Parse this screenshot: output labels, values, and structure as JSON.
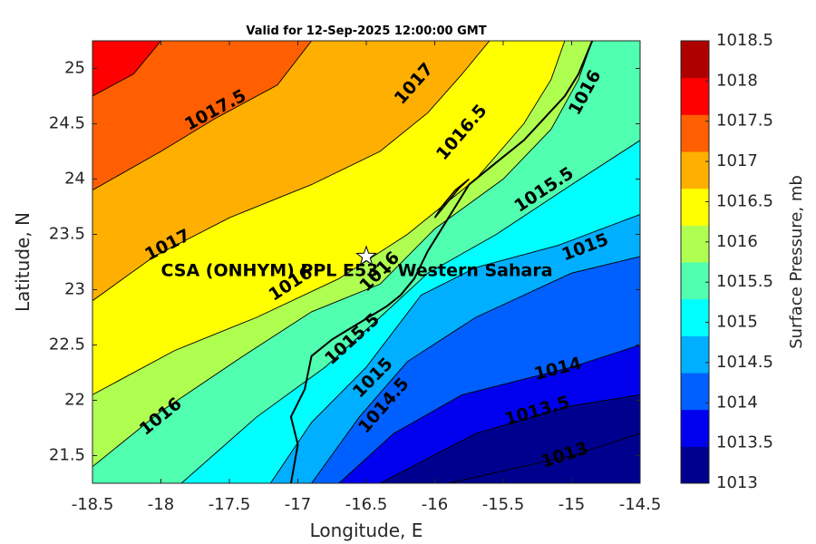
{
  "chart_data": {
    "type": "contour",
    "title": "Valid for 12-Sep-2025 12:00:00 GMT",
    "xlabel": "Longitude, E",
    "ylabel": "Latitude, N",
    "colorbar_label": "Surface Pressure, mb",
    "xlim": [
      -18.5,
      -14.5
    ],
    "ylim": [
      21.25,
      25.25
    ],
    "xticks": [
      "-18.5",
      "-18",
      "-17.5",
      "-17",
      "-16.5",
      "-16",
      "-15.5",
      "-15",
      "-14.5"
    ],
    "yticks": [
      "21.5",
      "22",
      "22.5",
      "23",
      "23.5",
      "24",
      "24.5",
      "25"
    ],
    "colorbar_levels": [
      1013,
      1013.5,
      1014,
      1014.5,
      1015,
      1015.5,
      1016,
      1016.5,
      1017,
      1017.5,
      1018,
      1018.5
    ],
    "colorbar_ticks": [
      "1013",
      "1013.5",
      "1014",
      "1014.5",
      "1015",
      "1015.5",
      "1016",
      "1016.5",
      "1017",
      "1017.5",
      "1018",
      "1018.5"
    ],
    "band_colors": [
      "#00008f",
      "#0000ef",
      "#005fff",
      "#00afff",
      "#00ffff",
      "#50ffaf",
      "#afff50",
      "#ffff00",
      "#ffaf00",
      "#ff5f00",
      "#ff0000",
      "#af0000"
    ],
    "contour_lines": [
      {
        "level": 1013,
        "points": [
          [
            -15.9,
            21.25
          ],
          [
            -15.0,
            21.5
          ],
          [
            -14.5,
            21.7
          ]
        ]
      },
      {
        "level": 1013.5,
        "points": [
          [
            -16.4,
            21.25
          ],
          [
            -15.7,
            21.7
          ],
          [
            -15.0,
            21.95
          ],
          [
            -14.5,
            22.05
          ]
        ]
      },
      {
        "level": 1014,
        "points": [
          [
            -16.7,
            21.25
          ],
          [
            -16.3,
            21.7
          ],
          [
            -15.8,
            22.05
          ],
          [
            -15.0,
            22.3
          ],
          [
            -14.5,
            22.5
          ]
        ]
      },
      {
        "level": 1014.5,
        "points": [
          [
            -16.9,
            21.25
          ],
          [
            -16.55,
            21.85
          ],
          [
            -16.2,
            22.35
          ],
          [
            -15.7,
            22.75
          ],
          [
            -15.0,
            23.15
          ],
          [
            -14.5,
            23.3
          ]
        ]
      },
      {
        "level": 1015,
        "points": [
          [
            -17.2,
            21.25
          ],
          [
            -16.9,
            21.8
          ],
          [
            -16.5,
            22.3
          ],
          [
            -16.1,
            22.95
          ],
          [
            -15.7,
            23.2
          ],
          [
            -15.1,
            23.4
          ],
          [
            -14.5,
            23.68
          ]
        ]
      },
      {
        "level": 1015.5,
        "points": [
          [
            -17.85,
            21.25
          ],
          [
            -17.3,
            21.85
          ],
          [
            -16.8,
            22.3
          ],
          [
            -16.4,
            22.75
          ],
          [
            -16.05,
            23.15
          ],
          [
            -15.55,
            23.5
          ],
          [
            -15.0,
            23.95
          ],
          [
            -14.5,
            24.35
          ]
        ]
      },
      {
        "level": 1016,
        "points": [
          [
            -18.5,
            21.4
          ],
          [
            -18.0,
            21.9
          ],
          [
            -17.4,
            22.4
          ],
          [
            -16.9,
            22.8
          ],
          [
            -16.4,
            23.05
          ],
          [
            -16.0,
            23.55
          ],
          [
            -15.5,
            24.0
          ],
          [
            -15.15,
            24.45
          ],
          [
            -14.95,
            24.9
          ],
          [
            -14.85,
            25.25
          ]
        ]
      },
      {
        "level": 1016.5,
        "points": [
          [
            -18.5,
            22.05
          ],
          [
            -17.9,
            22.45
          ],
          [
            -17.3,
            22.75
          ],
          [
            -16.7,
            23.1
          ],
          [
            -16.2,
            23.5
          ],
          [
            -15.7,
            24.0
          ],
          [
            -15.35,
            24.5
          ],
          [
            -15.15,
            24.9
          ],
          [
            -15.05,
            25.25
          ]
        ]
      },
      {
        "level": 1017,
        "points": [
          [
            -18.5,
            22.9
          ],
          [
            -18.05,
            23.3
          ],
          [
            -17.5,
            23.65
          ],
          [
            -16.9,
            23.95
          ],
          [
            -16.4,
            24.25
          ],
          [
            -16.05,
            24.6
          ],
          [
            -15.8,
            24.95
          ],
          [
            -15.6,
            25.25
          ]
        ]
      },
      {
        "level": 1017.5,
        "points": [
          [
            -18.5,
            23.9
          ],
          [
            -18.0,
            24.25
          ],
          [
            -17.6,
            24.55
          ],
          [
            -17.15,
            24.85
          ],
          [
            -16.9,
            25.25
          ]
        ]
      },
      {
        "level": 1018,
        "points": [
          [
            -18.5,
            24.75
          ],
          [
            -18.2,
            24.95
          ],
          [
            -18.0,
            25.25
          ]
        ]
      }
    ],
    "contour_labels": [
      {
        "text": "1013",
        "x": -15.05,
        "y": 21.5
      },
      {
        "text": "1013.5",
        "x": -15.25,
        "y": 21.9
      },
      {
        "text": "1014",
        "x": -15.1,
        "y": 22.28
      },
      {
        "text": "1014.5",
        "x": -16.37,
        "y": 21.95
      },
      {
        "text": "1015",
        "x": -16.45,
        "y": 22.2
      },
      {
        "text": "1015",
        "x": -14.9,
        "y": 23.38
      },
      {
        "text": "1015.5",
        "x": -16.6,
        "y": 22.55
      },
      {
        "text": "1015.5",
        "x": -15.2,
        "y": 23.9
      },
      {
        "text": "1016",
        "x": -18.0,
        "y": 21.85
      },
      {
        "text": "1016",
        "x": -17.05,
        "y": 23.05
      },
      {
        "text": "1016",
        "x": -16.4,
        "y": 23.16
      },
      {
        "text": "1016",
        "x": -14.9,
        "y": 24.78
      },
      {
        "text": "1016.5",
        "x": -15.8,
        "y": 24.42
      },
      {
        "text": "1017",
        "x": -17.95,
        "y": 23.4
      },
      {
        "text": "1017",
        "x": -16.15,
        "y": 24.86
      },
      {
        "text": "1017.5",
        "x": -17.6,
        "y": 24.62
      }
    ],
    "station": {
      "label": "CSA (ONHYM) PPL E53 - Western Sahara",
      "lon": -16.5,
      "lat": 23.3,
      "label_lon": -18.0,
      "label_lat": 23.17
    },
    "coastline": [
      [
        -17.05,
        21.25
      ],
      [
        -17.0,
        21.6
      ],
      [
        -17.05,
        21.85
      ],
      [
        -16.95,
        22.1
      ],
      [
        -16.9,
        22.4
      ],
      [
        -16.75,
        22.55
      ],
      [
        -16.55,
        22.7
      ],
      [
        -16.35,
        22.85
      ],
      [
        -16.25,
        22.95
      ],
      [
        -16.15,
        23.1
      ],
      [
        -16.05,
        23.35
      ],
      [
        -15.95,
        23.55
      ],
      [
        -15.85,
        23.75
      ],
      [
        -15.75,
        23.95
      ],
      [
        -15.55,
        24.15
      ],
      [
        -15.35,
        24.35
      ],
      [
        -15.2,
        24.55
      ],
      [
        -15.05,
        24.75
      ],
      [
        -14.95,
        24.95
      ],
      [
        -14.85,
        25.25
      ]
    ],
    "coastline_inner": [
      [
        -16.0,
        23.65
      ],
      [
        -15.9,
        23.8
      ],
      [
        -15.82,
        23.92
      ],
      [
        -15.75,
        24.0
      ],
      [
        -15.85,
        23.9
      ],
      [
        -15.95,
        23.75
      ],
      [
        -16.0,
        23.65
      ]
    ]
  }
}
